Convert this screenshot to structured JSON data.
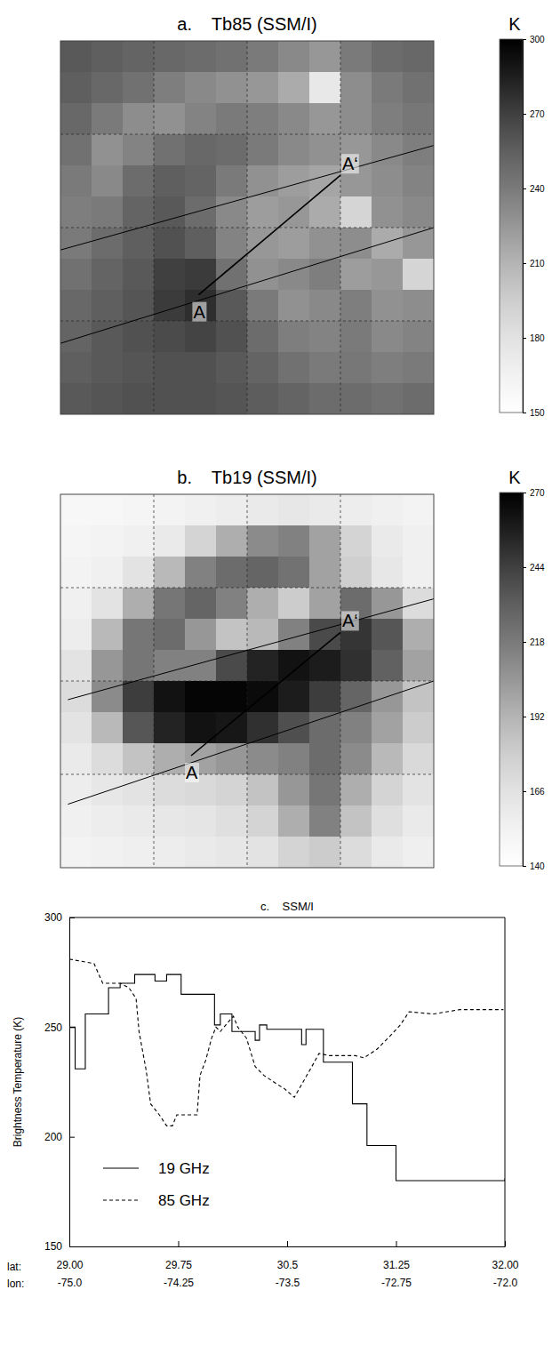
{
  "chart_data": [
    {
      "type": "heatmap",
      "title": "a.    Tb85 (SSM/I)",
      "color": "Greys",
      "tick_labels": false,
      "colorbar_label": "K",
      "colorbar_lim": [
        150,
        300
      ],
      "colorbar_ticks": [
        150,
        180,
        210,
        240,
        270,
        300
      ],
      "annotations": [
        "A",
        "A‘"
      ],
      "cells": [
        [
          258,
          255,
          252,
          250,
          248,
          245,
          240,
          232,
          225,
          240,
          248,
          250
        ],
        [
          255,
          250,
          245,
          238,
          232,
          228,
          225,
          215,
          175,
          230,
          240,
          245
        ],
        [
          250,
          240,
          230,
          228,
          235,
          240,
          238,
          232,
          225,
          230,
          238,
          242
        ],
        [
          245,
          228,
          235,
          245,
          250,
          248,
          240,
          232,
          228,
          225,
          232,
          238
        ],
        [
          240,
          232,
          248,
          255,
          252,
          240,
          228,
          222,
          218,
          225,
          230,
          235
        ],
        [
          238,
          240,
          252,
          258,
          248,
          232,
          222,
          225,
          215,
          190,
          228,
          232
        ],
        [
          240,
          248,
          255,
          262,
          255,
          235,
          225,
          222,
          228,
          230,
          215,
          225
        ],
        [
          245,
          252,
          258,
          270,
          272,
          245,
          228,
          232,
          238,
          222,
          225,
          190
        ],
        [
          250,
          255,
          260,
          272,
          278,
          258,
          240,
          228,
          232,
          238,
          228,
          230
        ],
        [
          252,
          258,
          262,
          265,
          268,
          262,
          248,
          238,
          235,
          240,
          232,
          235
        ],
        [
          255,
          258,
          260,
          262,
          262,
          258,
          252,
          245,
          240,
          242,
          238,
          240
        ],
        [
          258,
          260,
          262,
          262,
          262,
          260,
          256,
          252,
          248,
          248,
          245,
          248
        ]
      ]
    },
    {
      "type": "heatmap",
      "title": "b.    Tb19 (SSM/I)",
      "color": "Greys",
      "tick_labels": false,
      "colorbar_label": "K",
      "colorbar_lim": [
        140,
        270
      ],
      "colorbar_ticks": [
        140,
        166,
        192,
        218,
        244,
        270
      ],
      "annotations": [
        "A",
        "A‘"
      ],
      "cells": [
        [
          148,
          148,
          150,
          152,
          155,
          158,
          160,
          162,
          160,
          158,
          155,
          152
        ],
        [
          150,
          152,
          155,
          160,
          175,
          195,
          210,
          215,
          200,
          175,
          160,
          155
        ],
        [
          152,
          155,
          165,
          190,
          215,
          225,
          228,
          222,
          200,
          178,
          162,
          155
        ],
        [
          155,
          165,
          195,
          220,
          228,
          215,
          195,
          180,
          200,
          225,
          205,
          170
        ],
        [
          158,
          190,
          220,
          225,
          205,
          185,
          190,
          215,
          240,
          248,
          235,
          195
        ],
        [
          165,
          205,
          220,
          215,
          215,
          240,
          255,
          262,
          258,
          250,
          230,
          200
        ],
        [
          170,
          210,
          245,
          262,
          268,
          268,
          265,
          258,
          245,
          228,
          205,
          185
        ],
        [
          165,
          190,
          235,
          255,
          262,
          260,
          250,
          238,
          225,
          215,
          200,
          180
        ],
        [
          160,
          170,
          185,
          195,
          200,
          205,
          210,
          215,
          225,
          210,
          190,
          172
        ],
        [
          158,
          162,
          165,
          170,
          172,
          175,
          185,
          205,
          220,
          195,
          175,
          165
        ],
        [
          155,
          158,
          160,
          162,
          164,
          168,
          175,
          195,
          215,
          185,
          168,
          160
        ],
        [
          152,
          154,
          156,
          158,
          160,
          162,
          165,
          175,
          180,
          170,
          160,
          156
        ]
      ]
    },
    {
      "type": "line",
      "title": "c.    SSM/I",
      "ylabel": "Brightness Temperature (K)",
      "xlabel": "lat:",
      "x2label": "lon:",
      "legend": "lower left",
      "xlim": [
        29,
        32
      ],
      "xticks": [
        {
          "value": 29,
          "label": "29.00"
        },
        29.75,
        30.5,
        31.25,
        {
          "value": 32,
          "label": "32.00"
        }
      ],
      "x2lim": [
        -75,
        -72
      ],
      "x2ticks": [
        {
          "value": -75,
          "label": "-75.0"
        },
        -74.25,
        -73.5,
        -72.75,
        {
          "value": -72,
          "label": "-72.0"
        }
      ],
      "ylim": [
        150,
        300
      ],
      "yticks": [
        150,
        200,
        250,
        300
      ],
      "series": [
        {
          "name": "19 GHz",
          "color": "#000000",
          "type": "step",
          "line_style": "solid",
          "x": [
            29.0,
            29.04,
            29.11,
            29.27,
            29.35,
            29.45,
            29.59,
            29.67,
            29.77,
            30.0,
            30.04,
            30.12,
            30.28,
            30.31,
            30.36,
            30.6,
            30.63,
            30.75,
            30.95,
            31.05,
            31.25,
            32.0
          ],
          "values": [
            250,
            231,
            256,
            268,
            270,
            274,
            271,
            274,
            265,
            251,
            256,
            248,
            244,
            251,
            249,
            242,
            249,
            234,
            215,
            196,
            180,
            181
          ]
        },
        {
          "name": "85 GHz",
          "color": "#000000",
          "type": "line",
          "line_style": "dashed",
          "x": [
            29.0,
            29.17,
            29.23,
            29.35,
            29.41,
            29.46,
            29.48,
            29.53,
            29.56,
            29.62,
            29.67,
            29.71,
            29.74,
            29.88,
            29.9,
            29.94,
            29.98,
            30.01,
            30.04,
            30.09,
            30.13,
            30.16,
            30.22,
            30.28,
            30.34,
            30.43,
            30.48,
            30.55,
            30.61,
            30.67,
            30.72,
            30.79,
            30.97,
            31.03,
            31.12,
            31.21,
            31.28,
            31.34,
            31.51,
            31.69,
            31.99
          ],
          "values": [
            281,
            279,
            270,
            270,
            268,
            263,
            248,
            230,
            215,
            210,
            205,
            205,
            210,
            210,
            228,
            235,
            245,
            250,
            248,
            252,
            255,
            250,
            245,
            232,
            228,
            224,
            222,
            218,
            225,
            232,
            238,
            237,
            237,
            236,
            240,
            246,
            251,
            257,
            256,
            258,
            258
          ]
        }
      ]
    }
  ]
}
